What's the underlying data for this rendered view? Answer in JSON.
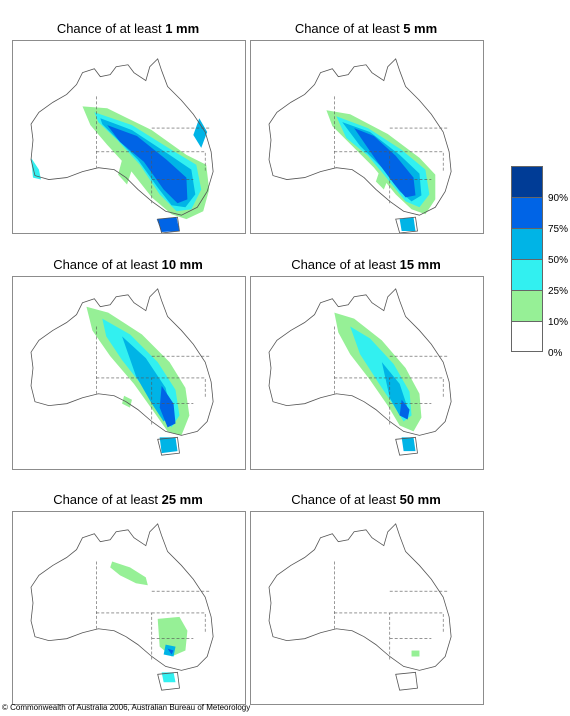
{
  "panels": [
    {
      "prefix": "Chance of at least ",
      "amount": "1 mm"
    },
    {
      "prefix": "Chance of at least ",
      "amount": "5 mm"
    },
    {
      "prefix": "Chance of at least ",
      "amount": "10 mm"
    },
    {
      "prefix": "Chance of at least ",
      "amount": "15 mm"
    },
    {
      "prefix": "Chance of at least ",
      "amount": "25 mm"
    },
    {
      "prefix": "Chance of at least ",
      "amount": "50 mm"
    }
  ],
  "legend": {
    "labels": [
      "90%",
      "75%",
      "50%",
      "25%",
      "10%",
      "0%"
    ],
    "colors": [
      "#003c96",
      "#0064e6",
      "#00b4e6",
      "#32f0f0",
      "#96f096",
      "#ffffff"
    ]
  },
  "copyright": "© Commonwealth of Australia 2006, Australian Bureau of Meteorology"
}
